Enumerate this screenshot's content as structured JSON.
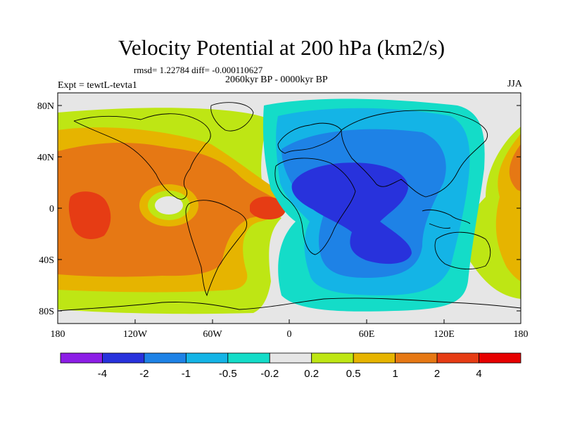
{
  "title": "Velocity Potential at 200 hPa (km2/s)",
  "stats_line": "rmsd= 1.22784 diff= -0.000110627",
  "period": "2060kyr BP - 0000kyr BP",
  "experiment": "Expt = tewtL-tevta1",
  "season": "JJA",
  "lat_ticks": [
    "80N",
    "40N",
    "0",
    "40S",
    "80S"
  ],
  "lon_ticks": [
    "180",
    "120W",
    "60W",
    "0",
    "60E",
    "120E",
    "180"
  ],
  "colorbar": {
    "labels": [
      "-4",
      "-2",
      "-1",
      "-0.5",
      "-0.2",
      "0.2",
      "0.5",
      "1",
      "2",
      "4"
    ],
    "colors": [
      "#8c1ee6",
      "#2832dc",
      "#1e82e6",
      "#14b4e6",
      "#14dcc8",
      "#e6e6e6",
      "#bee614",
      "#e6b400",
      "#e67814",
      "#e63c14",
      "#e60000"
    ]
  }
}
